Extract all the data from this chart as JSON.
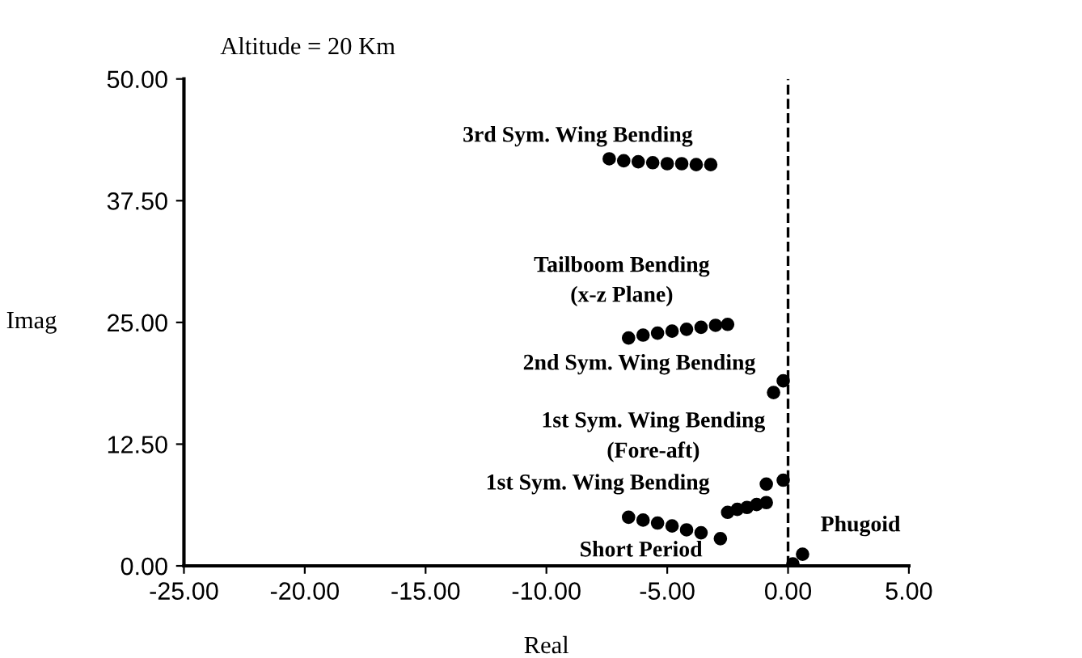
{
  "chart_data": {
    "type": "scatter",
    "title": "Altitude = 20 Km",
    "xlabel": "Real",
    "ylabel": "Imag",
    "xlim": [
      -25,
      5
    ],
    "ylim": [
      0,
      50
    ],
    "xticks": [
      {
        "value": -25,
        "label": "-25.00"
      },
      {
        "value": -20,
        "label": "-20.00"
      },
      {
        "value": -15,
        "label": "-15.00"
      },
      {
        "value": -10,
        "label": "-10.00"
      },
      {
        "value": -5,
        "label": "-5.00"
      },
      {
        "value": 0,
        "label": "0.00"
      },
      {
        "value": 5,
        "label": "5.00"
      }
    ],
    "yticks": [
      {
        "value": 0,
        "label": "0.00"
      },
      {
        "value": 12.5,
        "label": "12.50"
      },
      {
        "value": 25,
        "label": "25.00"
      },
      {
        "value": 37.5,
        "label": "37.50"
      },
      {
        "value": 50,
        "label": "50.00"
      }
    ],
    "marker": "circle",
    "grid": false,
    "series": [
      {
        "color": "#000000",
        "x": [
          -7.4,
          -6.8,
          -6.2,
          -5.6,
          -5.0,
          -4.4,
          -3.8,
          -3.2
        ],
        "values": [
          41.8,
          41.6,
          41.5,
          41.4,
          41.3,
          41.3,
          41.2,
          41.2
        ]
      },
      {
        "color": "#000000",
        "x": [
          -6.6,
          -6.0,
          -5.4,
          -4.8,
          -4.2,
          -3.6,
          -3.0,
          -2.5
        ],
        "values": [
          23.4,
          23.7,
          23.9,
          24.1,
          24.3,
          24.5,
          24.7,
          24.8
        ]
      },
      {
        "color": "#000000",
        "x": [
          -0.6,
          -0.2
        ],
        "values": [
          17.8,
          19.0
        ]
      },
      {
        "color": "#000000",
        "x": [
          -0.9,
          -0.2
        ],
        "values": [
          8.4,
          8.8
        ]
      },
      {
        "color": "#000000",
        "x": [
          -2.5,
          -2.1,
          -1.7,
          -1.3,
          -0.9
        ],
        "values": [
          5.5,
          5.8,
          6.0,
          6.3,
          6.5
        ]
      },
      {
        "color": "#000000",
        "x": [
          -6.6,
          -6.0,
          -5.4,
          -4.8,
          -4.2,
          -3.6,
          -2.8
        ],
        "values": [
          5.0,
          4.7,
          4.4,
          4.1,
          3.7,
          3.4,
          2.8
        ]
      },
      {
        "color": "#000000",
        "x": [
          0.2,
          0.6
        ],
        "values": [
          0.2,
          1.2
        ]
      }
    ],
    "ref_lines": [
      {
        "axis": "x",
        "value": 0,
        "color": "#000000",
        "line_style": "dashed"
      }
    ],
    "annotations": [
      {
        "text": "3rd Sym. Wing Bending",
        "x": -3.2,
        "y": 41.2
      },
      {
        "text": "Tailboom Bending\n(x-z Plane)",
        "x": -2.5,
        "y": 24.8
      },
      {
        "text": "2nd Sym. Wing Bending",
        "x": -0.6,
        "y": 17.8
      },
      {
        "text": "1st Sym. Wing Bending\n(Fore-aft)",
        "x": -0.2,
        "y": 8.8
      },
      {
        "text": "1st Sym. Wing Bending",
        "x": -2.5,
        "y": 5.5
      },
      {
        "text": "Short Period",
        "x": -2.8,
        "y": 2.8
      },
      {
        "text": "Phugoid",
        "x": 0.6,
        "y": 1.2
      }
    ]
  }
}
